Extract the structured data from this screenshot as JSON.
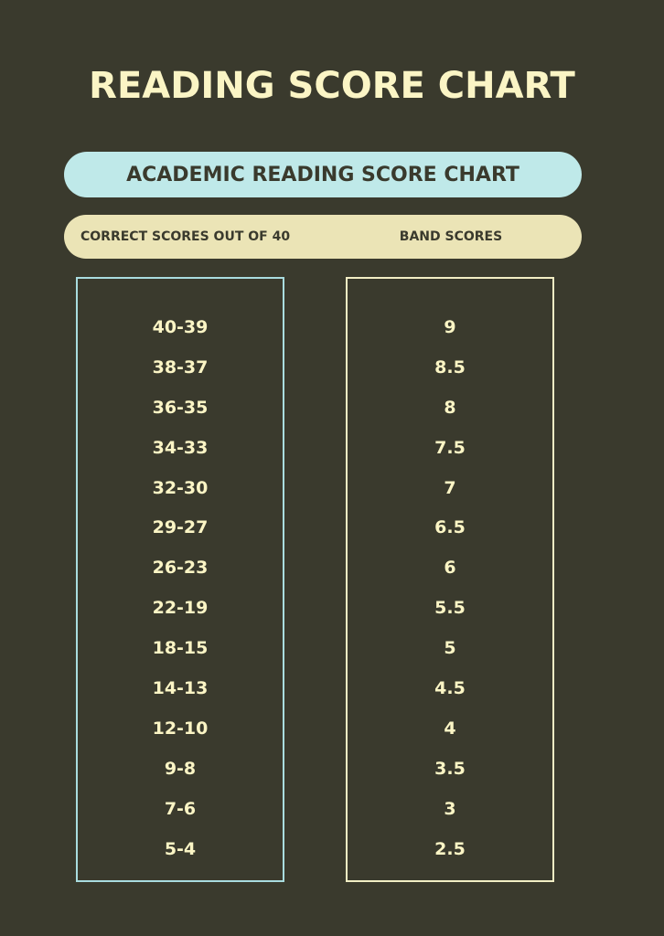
{
  "title": "READING SCORE CHART",
  "subtitle": "ACADEMIC READING SCORE CHART",
  "headers": {
    "correct": "CORRECT SCORES OUT OF 40",
    "band": "BAND SCORES"
  },
  "rows": [
    {
      "correct": "40-39",
      "band": "9"
    },
    {
      "correct": "38-37",
      "band": "8.5"
    },
    {
      "correct": "36-35",
      "band": "8"
    },
    {
      "correct": "34-33",
      "band": "7.5"
    },
    {
      "correct": "32-30",
      "band": "7"
    },
    {
      "correct": "29-27",
      "band": "6.5"
    },
    {
      "correct": "26-23",
      "band": "6"
    },
    {
      "correct": "22-19",
      "band": "5.5"
    },
    {
      "correct": "18-15",
      "band": "5"
    },
    {
      "correct": "14-13",
      "band": "4.5"
    },
    {
      "correct": "12-10",
      "band": "4"
    },
    {
      "correct": "9-8",
      "band": "3.5"
    },
    {
      "correct": "7-6",
      "band": "3"
    },
    {
      "correct": "5-4",
      "band": "2.5"
    }
  ],
  "colors": {
    "background": "#3a3a2d",
    "title_text": "#fbf5c5",
    "subtitle_bar": "#bfe9e9",
    "header_bar": "#ebe4b6",
    "left_border": "#a9dcdf",
    "right_border": "#f2eec4"
  }
}
